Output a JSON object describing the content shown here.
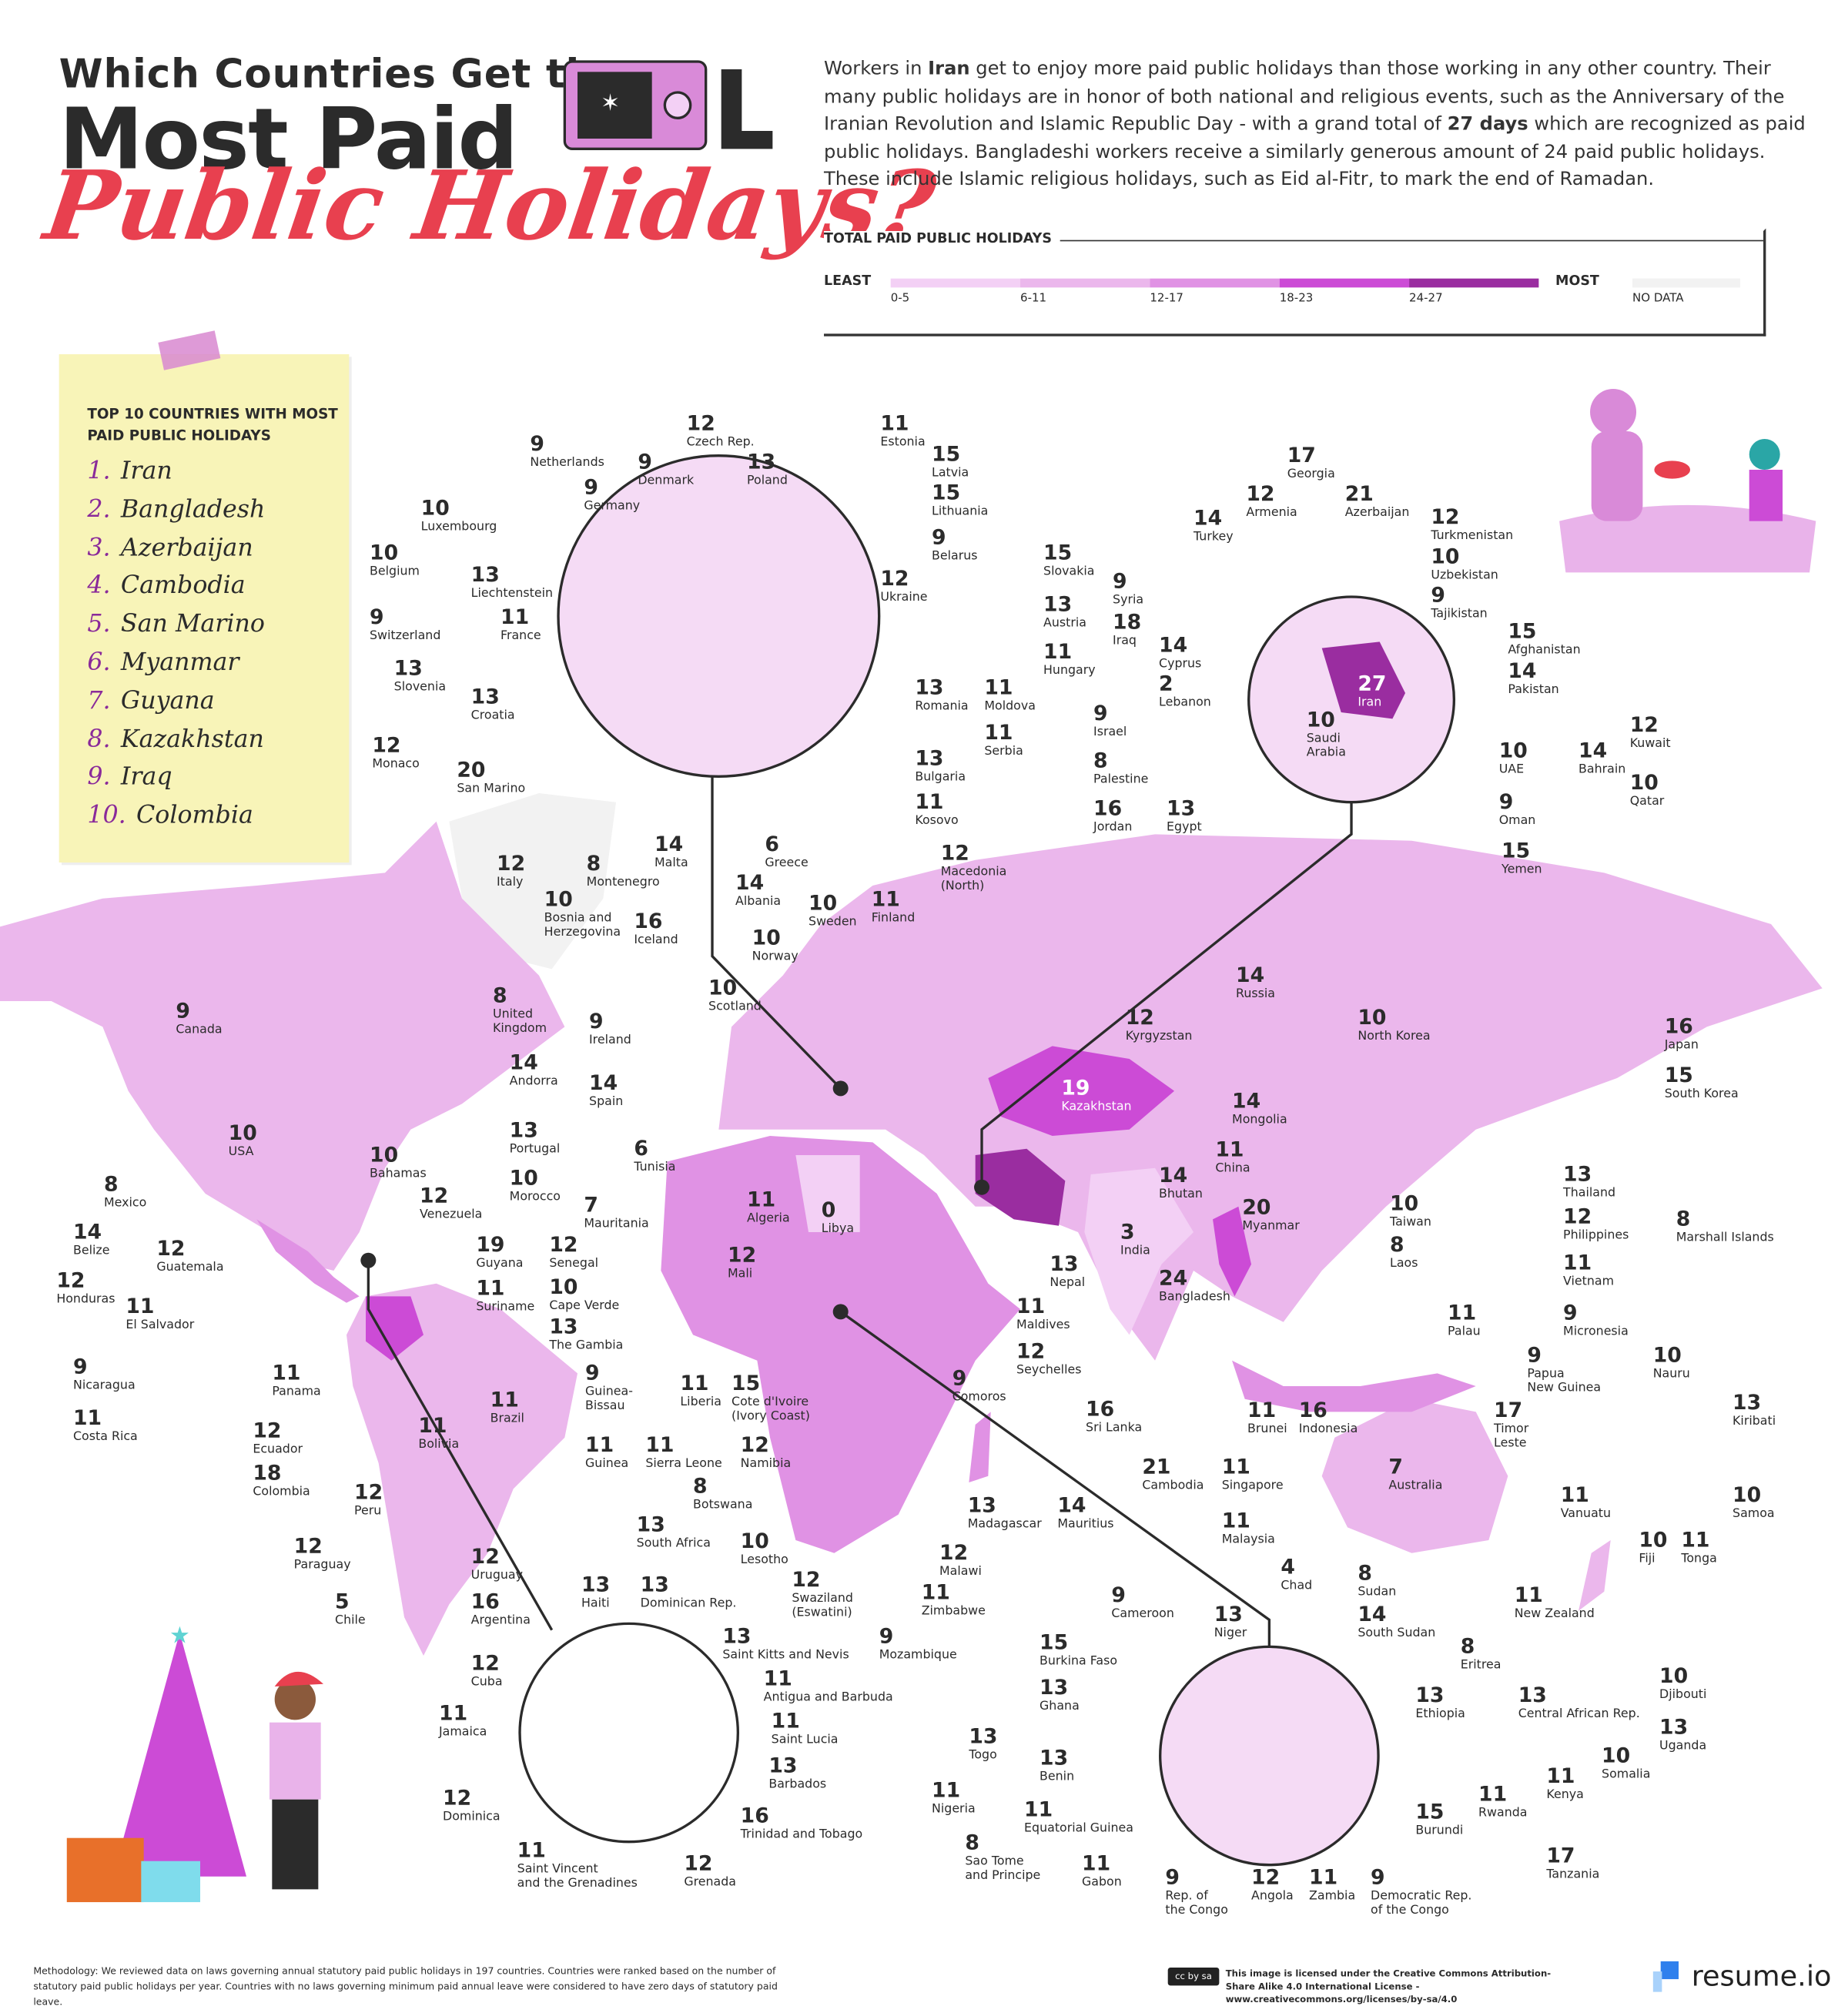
{
  "title": {
    "line1": "Which Countries Get the",
    "line2": "Most Paid",
    "line3": "Public Holidays?"
  },
  "intro": {
    "p1": "Workers in ",
    "b1": "Iran",
    "p2": " get to enjoy more paid public holidays than those working in any other country. Their many public holidays are in honor of both national and religious events, such as the Anniversary of the Iranian Revolution and Islamic Republic Day - with a grand total of ",
    "b2": "27 days",
    "p3": " which are recognized as paid public holidays. Bangladeshi workers receive a similarly generous amount of 24 paid public holidays. These include Islamic religious holidays, such as Eid al-Fitr, to mark the end of Ramadan."
  },
  "legend": {
    "title": "TOTAL PAID PUBLIC HOLIDAYS",
    "least": "LEAST",
    "most": "MOST",
    "bins": [
      {
        "label": "0-5",
        "color": "#f3d0f5"
      },
      {
        "label": "6-11",
        "color": "#ebb7ec"
      },
      {
        "label": "12-17",
        "color": "#e092e4"
      },
      {
        "label": "18-23",
        "color": "#cc4bd6"
      },
      {
        "label": "24-27",
        "color": "#9a2da0"
      }
    ],
    "no_data": {
      "label": "NO DATA",
      "color": "#f2f2f2"
    }
  },
  "top10": {
    "title": "TOP 10 COUNTRIES WITH MOST PAID PUBLIC HOLIDAYS",
    "items": [
      {
        "rank": "1.",
        "name": "Iran"
      },
      {
        "rank": "2.",
        "name": "Bangladesh"
      },
      {
        "rank": "3.",
        "name": "Azerbaijan"
      },
      {
        "rank": "4.",
        "name": "Cambodia"
      },
      {
        "rank": "5.",
        "name": "San Marino"
      },
      {
        "rank": "6.",
        "name": "Myanmar"
      },
      {
        "rank": "7.",
        "name": "Guyana"
      },
      {
        "rank": "8.",
        "name": "Kazakhstan"
      },
      {
        "rank": "9.",
        "name": "Iraq"
      },
      {
        "rank": "10.",
        "name": "Colombia"
      }
    ]
  },
  "countries": [
    {
      "v": "9",
      "n": "Netherlands"
    },
    {
      "v": "12",
      "n": "Czech Rep."
    },
    {
      "v": "11",
      "n": "Estonia"
    },
    {
      "v": "9",
      "n": "Denmark"
    },
    {
      "v": "13",
      "n": "Poland"
    },
    {
      "v": "15",
      "n": "Latvia"
    },
    {
      "v": "9",
      "n": "Germany"
    },
    {
      "v": "15",
      "n": "Lithuania"
    },
    {
      "v": "10",
      "n": "Luxembourg"
    },
    {
      "v": "9",
      "n": "Belarus"
    },
    {
      "v": "15",
      "n": "Slovakia"
    },
    {
      "v": "10",
      "n": "Belgium"
    },
    {
      "v": "13",
      "n": "Liechtenstein"
    },
    {
      "v": "12",
      "n": "Ukraine"
    },
    {
      "v": "13",
      "n": "Austria"
    },
    {
      "v": "9",
      "n": "Switzerland"
    },
    {
      "v": "11",
      "n": "France"
    },
    {
      "v": "11",
      "n": "Hungary"
    },
    {
      "v": "13",
      "n": "Slovenia"
    },
    {
      "v": "13",
      "n": "Croatia"
    },
    {
      "v": "13",
      "n": "Romania"
    },
    {
      "v": "11",
      "n": "Moldova"
    },
    {
      "v": "11",
      "n": "Serbia"
    },
    {
      "v": "12",
      "n": "Monaco"
    },
    {
      "v": "20",
      "n": "San Marino"
    },
    {
      "v": "13",
      "n": "Bulgaria"
    },
    {
      "v": "11",
      "n": "Kosovo"
    },
    {
      "v": "12",
      "n": "Italy"
    },
    {
      "v": "8",
      "n": "Montenegro"
    },
    {
      "v": "14",
      "n": "Malta"
    },
    {
      "v": "6",
      "n": "Greece"
    },
    {
      "v": "12",
      "n": "Macedonia\n(North)"
    },
    {
      "v": "10",
      "n": "Bosnia and\nHerzegovina"
    },
    {
      "v": "14",
      "n": "Albania"
    },
    {
      "v": "17",
      "n": "Georgia"
    },
    {
      "v": "12",
      "n": "Armenia"
    },
    {
      "v": "21",
      "n": "Azerbaijan"
    },
    {
      "v": "14",
      "n": "Turkey"
    },
    {
      "v": "12",
      "n": "Turkmenistan"
    },
    {
      "v": "10",
      "n": "Uzbekistan"
    },
    {
      "v": "9",
      "n": "Syria"
    },
    {
      "v": "9",
      "n": "Tajikistan"
    },
    {
      "v": "18",
      "n": "Iraq"
    },
    {
      "v": "15",
      "n": "Afghanistan"
    },
    {
      "v": "14",
      "n": "Cyprus"
    },
    {
      "v": "14",
      "n": "Pakistan"
    },
    {
      "v": "2",
      "n": "Lebanon"
    },
    {
      "v": "27",
      "n": "Iran"
    },
    {
      "v": "9",
      "n": "Israel"
    },
    {
      "v": "10",
      "n": "Saudi\nArabia"
    },
    {
      "v": "12",
      "n": "Kuwait"
    },
    {
      "v": "10",
      "n": "UAE"
    },
    {
      "v": "14",
      "n": "Bahrain"
    },
    {
      "v": "8",
      "n": "Palestine"
    },
    {
      "v": "10",
      "n": "Qatar"
    },
    {
      "v": "16",
      "n": "Jordan"
    },
    {
      "v": "13",
      "n": "Egypt"
    },
    {
      "v": "9",
      "n": "Oman"
    },
    {
      "v": "15",
      "n": "Yemen"
    },
    {
      "v": "16",
      "n": "Iceland"
    },
    {
      "v": "10",
      "n": "Sweden"
    },
    {
      "v": "11",
      "n": "Finland"
    },
    {
      "v": "10",
      "n": "Norway"
    },
    {
      "v": "14",
      "n": "Russia"
    },
    {
      "v": "9",
      "n": "Canada"
    },
    {
      "v": "8",
      "n": "United\nKingdom"
    },
    {
      "v": "10",
      "n": "Scotland"
    },
    {
      "v": "9",
      "n": "Ireland"
    },
    {
      "v": "12",
      "n": "Kyrgyzstan"
    },
    {
      "v": "10",
      "n": "North Korea"
    },
    {
      "v": "16",
      "n": "Japan"
    },
    {
      "v": "14",
      "n": "Andorra"
    },
    {
      "v": "14",
      "n": "Spain"
    },
    {
      "v": "19",
      "n": "Kazakhstan"
    },
    {
      "v": "15",
      "n": "South Korea"
    },
    {
      "v": "14",
      "n": "Mongolia"
    },
    {
      "v": "10",
      "n": "USA"
    },
    {
      "v": "13",
      "n": "Portugal"
    },
    {
      "v": "6",
      "n": "Tunisia"
    },
    {
      "v": "11",
      "n": "China"
    },
    {
      "v": "10",
      "n": "Bahamas"
    },
    {
      "v": "14",
      "n": "Bhutan"
    },
    {
      "v": "13",
      "n": "Thailand"
    },
    {
      "v": "10",
      "n": "Morocco"
    },
    {
      "v": "11",
      "n": "Algeria"
    },
    {
      "v": "8",
      "n": "Mexico"
    },
    {
      "v": "12",
      "n": "Venezuela"
    },
    {
      "v": "7",
      "n": "Mauritania"
    },
    {
      "v": "0",
      "n": "Libya"
    },
    {
      "v": "20",
      "n": "Myanmar"
    },
    {
      "v": "10",
      "n": "Taiwan"
    },
    {
      "v": "12",
      "n": "Philippines"
    },
    {
      "v": "8",
      "n": "Marshall Islands"
    },
    {
      "v": "14",
      "n": "Belize"
    },
    {
      "v": "12",
      "n": "Guatemala"
    },
    {
      "v": "19",
      "n": "Guyana"
    },
    {
      "v": "12",
      "n": "Senegal"
    },
    {
      "v": "3",
      "n": "India"
    },
    {
      "v": "8",
      "n": "Laos"
    },
    {
      "v": "12",
      "n": "Mali"
    },
    {
      "v": "11",
      "n": "Vietnam"
    },
    {
      "v": "13",
      "n": "Nepal"
    },
    {
      "v": "12",
      "n": "Honduras"
    },
    {
      "v": "11",
      "n": "Suriname"
    },
    {
      "v": "10",
      "n": "Cape Verde"
    },
    {
      "v": "24",
      "n": "Bangladesh"
    },
    {
      "v": "11",
      "n": "El Salvador"
    },
    {
      "v": "11",
      "n": "Palau"
    },
    {
      "v": "9",
      "n": "Micronesia"
    },
    {
      "v": "13",
      "n": "The Gambia"
    },
    {
      "v": "11",
      "n": "Maldives"
    },
    {
      "v": "9",
      "n": "Nicaragua"
    },
    {
      "v": "11",
      "n": "Panama"
    },
    {
      "v": "9",
      "n": "Guinea-\nBissau"
    },
    {
      "v": "11",
      "n": "Liberia"
    },
    {
      "v": "15",
      "n": "Cote d'Ivoire\n(Ivory Coast)"
    },
    {
      "v": "12",
      "n": "Seychelles"
    },
    {
      "v": "10",
      "n": "Nauru"
    },
    {
      "v": "9",
      "n": "Papua\nNew Guinea"
    },
    {
      "v": "9",
      "n": "Comoros"
    },
    {
      "v": "11",
      "n": "Brazil"
    },
    {
      "v": "13",
      "n": "Kiribati"
    },
    {
      "v": "11",
      "n": "Costa Rica"
    },
    {
      "v": "16",
      "n": "Sri Lanka"
    },
    {
      "v": "11",
      "n": "Brunei"
    },
    {
      "v": "16",
      "n": "Indonesia"
    },
    {
      "v": "17",
      "n": "Timor\nLeste"
    },
    {
      "v": "11",
      "n": "Bolivia"
    },
    {
      "v": "12",
      "n": "Ecuador"
    },
    {
      "v": "11",
      "n": "Guinea"
    },
    {
      "v": "11",
      "n": "Sierra Leone"
    },
    {
      "v": "12",
      "n": "Namibia"
    },
    {
      "v": "7",
      "n": "Australia"
    },
    {
      "v": "18",
      "n": "Colombia"
    },
    {
      "v": "8",
      "n": "Botswana"
    },
    {
      "v": "21",
      "n": "Cambodia"
    },
    {
      "v": "11",
      "n": "Singapore"
    },
    {
      "v": "12",
      "n": "Peru"
    },
    {
      "v": "11",
      "n": "Vanuatu"
    },
    {
      "v": "10",
      "n": "Samoa"
    },
    {
      "v": "13",
      "n": "Madagascar"
    },
    {
      "v": "14",
      "n": "Mauritius"
    },
    {
      "v": "13",
      "n": "South Africa"
    },
    {
      "v": "11",
      "n": "Malaysia"
    },
    {
      "v": "10",
      "n": "Lesotho"
    },
    {
      "v": "12",
      "n": "Paraguay"
    },
    {
      "v": "12",
      "n": "Uruguay"
    },
    {
      "v": "10",
      "n": "Fiji"
    },
    {
      "v": "11",
      "n": "Tonga"
    },
    {
      "v": "12",
      "n": "Malawi"
    },
    {
      "v": "12",
      "n": "Swaziland\n(Eswatini)"
    },
    {
      "v": "11",
      "n": "Zimbabwe"
    },
    {
      "v": "11",
      "n": "New Zealand"
    },
    {
      "v": "5",
      "n": "Chile"
    },
    {
      "v": "16",
      "n": "Argentina"
    },
    {
      "v": "13",
      "n": "Haiti"
    },
    {
      "v": "13",
      "n": "Dominican Rep."
    },
    {
      "v": "9",
      "n": "Mozambique"
    },
    {
      "v": "9",
      "n": "Cameroon"
    },
    {
      "v": "4",
      "n": "Chad"
    },
    {
      "v": "8",
      "n": "Sudan"
    },
    {
      "v": "13",
      "n": "Niger"
    },
    {
      "v": "14",
      "n": "South Sudan"
    },
    {
      "v": "13",
      "n": "Saint Kitts and Nevis"
    },
    {
      "v": "15",
      "n": "Burkina Faso"
    },
    {
      "v": "8",
      "n": "Eritrea"
    },
    {
      "v": "12",
      "n": "Cuba"
    },
    {
      "v": "11",
      "n": "Antigua and Barbuda"
    },
    {
      "v": "13",
      "n": "Ghana"
    },
    {
      "v": "13",
      "n": "Ethiopia"
    },
    {
      "v": "13",
      "n": "Central African Rep."
    },
    {
      "v": "10",
      "n": "Djibouti"
    },
    {
      "v": "11",
      "n": "Jamaica"
    },
    {
      "v": "11",
      "n": "Saint Lucia"
    },
    {
      "v": "13",
      "n": "Togo"
    },
    {
      "v": "13",
      "n": "Uganda"
    },
    {
      "v": "13",
      "n": "Benin"
    },
    {
      "v": "10",
      "n": "Somalia"
    },
    {
      "v": "13",
      "n": "Barbados"
    },
    {
      "v": "11",
      "n": "Kenya"
    },
    {
      "v": "11",
      "n": "Nigeria"
    },
    {
      "v": "12",
      "n": "Dominica"
    },
    {
      "v": "11",
      "n": "Rwanda"
    },
    {
      "v": "11",
      "n": "Equatorial Guinea"
    },
    {
      "v": "15",
      "n": "Burundi"
    },
    {
      "v": "16",
      "n": "Trinidad and Tobago"
    },
    {
      "v": "8",
      "n": "Sao Tome\nand Principe"
    },
    {
      "v": "17",
      "n": "Tanzania"
    },
    {
      "v": "11",
      "n": "Saint Vincent\nand the Grenadines"
    },
    {
      "v": "11",
      "n": "Gabon"
    },
    {
      "v": "12",
      "n": "Grenada"
    },
    {
      "v": "9",
      "n": "Rep. of\nthe Congo"
    },
    {
      "v": "12",
      "n": "Angola"
    },
    {
      "v": "11",
      "n": "Zambia"
    },
    {
      "v": "9",
      "n": "Democratic Rep.\nof the Congo"
    }
  ],
  "footer": {
    "methodology": "Methodology: We reviewed data on laws governing annual statutory paid public holidays in 197 countries. Countries were ranked based on the number of statutory paid public holidays per year. Countries with no laws governing minimum paid annual leave were considered to have zero days of statutory paid leave.",
    "license": "This image is licensed under the Creative Commons Attribution-Share Alike 4.0 International License - www.creativecommons.org/licenses/by-sa/4.0",
    "cc_badge": "cc by sa",
    "brand": "resume.io",
    "brand_color": "#2f80ed"
  }
}
